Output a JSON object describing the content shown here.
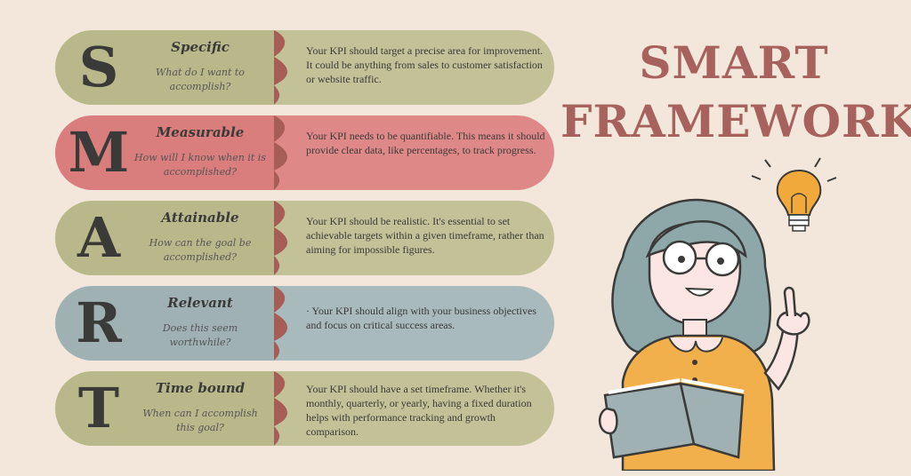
{
  "heading": {
    "line1": "SMART",
    "line2": "FRAMEWORK"
  },
  "rows": [
    {
      "letter": "S",
      "title": "Specific",
      "question": "What do I want to accomplish?",
      "description": "Your KPI should target a precise area for improvement. It could be anything from sales to customer satisfaction or website traffic.",
      "colors": {
        "left": "#b9b88b",
        "right": "#c2c197",
        "notch": "#a65d55"
      }
    },
    {
      "letter": "M",
      "title": "Measurable",
      "question": "How will I know when it is accomplished?",
      "description": "Your KPI needs to be quantifiable. This means it should provide clear data, like percentages, to track progress.",
      "colors": {
        "left": "#d97d7d",
        "right": "#df8888",
        "notch": "#a65d55"
      }
    },
    {
      "letter": "A",
      "title": "Attainable",
      "question": "How can the goal be accomplished?",
      "description": "Your KPI should be realistic. It's essential to set achievable targets within a given timeframe, rather than aiming for impossible figures.",
      "colors": {
        "left": "#b9b88b",
        "right": "#c2c197",
        "notch": "#a65d55"
      }
    },
    {
      "letter": "R",
      "title": "Relevant",
      "question": "Does this seem worthwhile?",
      "description": "·      Your KPI should align with your business objectives and focus on critical success areas.",
      "colors": {
        "left": "#9fb1b3",
        "right": "#a8babc",
        "notch": "#a65d55"
      }
    },
    {
      "letter": "T",
      "title": "Time bound",
      "question": "When can I accomplish this goal?",
      "description": "Your KPI should have a set timeframe. Whether it's monthly, quarterly, or yearly, having a fixed duration helps with performance tracking and growth comparison.",
      "colors": {
        "left": "#b9b88b",
        "right": "#c2c197",
        "notch": "#a65d55"
      }
    }
  ],
  "illustration": {
    "icons": [
      "woman-reading-book-illustration",
      "lightbulb-icon"
    ],
    "colors": {
      "hair": "#8ea8aa",
      "shirt": "#f2b04c",
      "bulb": "#f2a93b",
      "skin": "#fbe6e4",
      "book": "#9fb1b3"
    }
  }
}
